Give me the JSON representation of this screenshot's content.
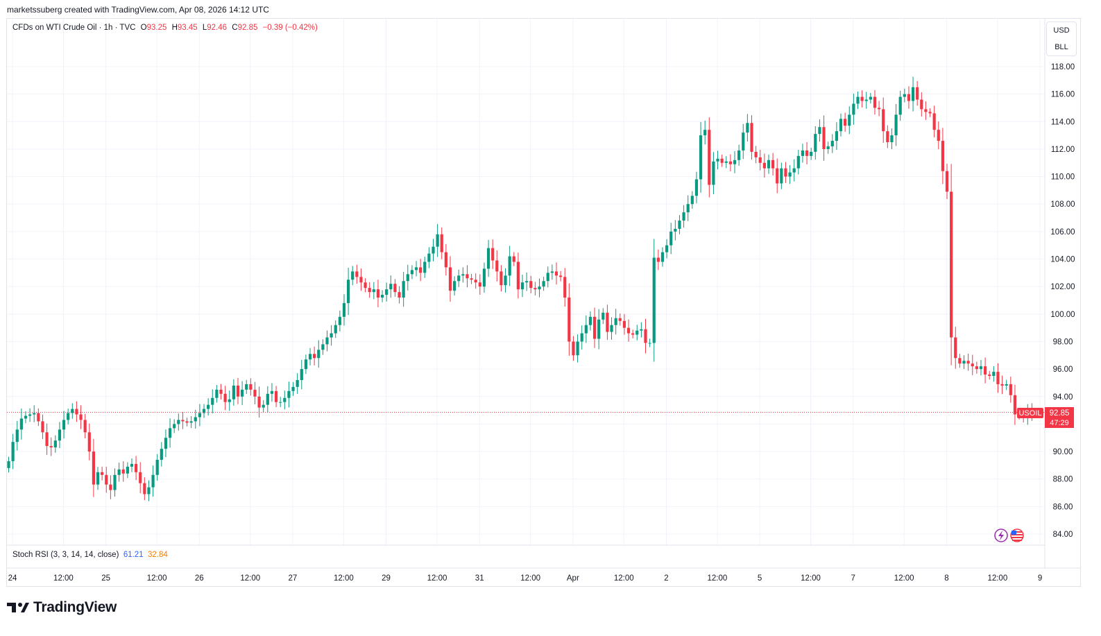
{
  "header": {
    "credit": "marketssuberg created with TradingView.com, Apr 08, 2026 14:12 UTC"
  },
  "legend": {
    "symbol": "CFDs on WTI Crude Oil · 1h · TVC",
    "o_label": "O",
    "o_value": "93.25",
    "h_label": "H",
    "h_value": "93.45",
    "l_label": "L",
    "l_value": "92.46",
    "c_label": "C",
    "c_value": "92.85",
    "change": "−0.39 (−0.42%)"
  },
  "currency": {
    "currency": "USD",
    "unit": "BLL"
  },
  "price_badge": {
    "symbol": "USOIL",
    "price": "92.85",
    "countdown": "47:29"
  },
  "indicator": {
    "name": "Stoch RSI (3, 3, 14, 14, close)",
    "k_value": "61.21",
    "d_value": "32.84"
  },
  "brand": {
    "name": "TradingView"
  },
  "colors": {
    "up": "#089981",
    "down": "#f23645",
    "grid": "#f0f3fa",
    "last_price_line": "#f23645"
  },
  "icons": [
    "lightning-icon",
    "us-flag-icon"
  ],
  "chart_data": {
    "type": "candlestick",
    "symbol": "USOIL",
    "interval": "1h",
    "ylim": [
      83.2,
      118.6
    ],
    "y_ticks": [
      "84.00",
      "86.00",
      "88.00",
      "90.00",
      "92.00",
      "94.00",
      "96.00",
      "98.00",
      "100.00",
      "102.00",
      "104.00",
      "106.00",
      "108.00",
      "110.00",
      "112.00",
      "114.00",
      "116.00",
      "118.00"
    ],
    "x_ticks": [
      {
        "label": "24",
        "bar": 0
      },
      {
        "label": "12:00",
        "bar": 12
      },
      {
        "label": "25",
        "bar": 22
      },
      {
        "label": "12:00",
        "bar": 34
      },
      {
        "label": "26",
        "bar": 44
      },
      {
        "label": "12:00",
        "bar": 56
      },
      {
        "label": "27",
        "bar": 66
      },
      {
        "label": "12:00",
        "bar": 78
      },
      {
        "label": "29",
        "bar": 88
      },
      {
        "label": "12:00",
        "bar": 100
      },
      {
        "label": "31",
        "bar": 110
      },
      {
        "label": "12:00",
        "bar": 122
      },
      {
        "label": "Apr",
        "bar": 132
      },
      {
        "label": "12:00",
        "bar": 144
      },
      {
        "label": "2",
        "bar": 154
      },
      {
        "label": "12:00",
        "bar": 166
      },
      {
        "label": "5",
        "bar": 176
      },
      {
        "label": "12:00",
        "bar": 188
      },
      {
        "label": "7",
        "bar": 198
      },
      {
        "label": "12:00",
        "bar": 210
      },
      {
        "label": "8",
        "bar": 220
      },
      {
        "label": "12:00",
        "bar": 232
      },
      {
        "label": "9",
        "bar": 242
      }
    ],
    "last_price": 92.85,
    "close_series": [
      89.3,
      90.7,
      91.6,
      92.4,
      92.6,
      92.7,
      92.8,
      92.2,
      91.4,
      90.4,
      90.3,
      90.8,
      91.6,
      92.3,
      92.8,
      93.1,
      92.7,
      92.3,
      91.4,
      90.0,
      87.6,
      88.5,
      88.3,
      87.6,
      87.2,
      88.3,
      88.7,
      88.4,
      88.9,
      89.1,
      88.5,
      87.7,
      86.9,
      87.4,
      88.3,
      89.4,
      90.2,
      91.0,
      91.7,
      92.0,
      92.3,
      92.2,
      92.1,
      92.2,
      92.5,
      92.8,
      93.1,
      93.4,
      93.9,
      94.5,
      94.2,
      93.6,
      93.8,
      94.8,
      94.0,
      94.5,
      94.9,
      94.5,
      94.0,
      93.2,
      93.4,
      94.2,
      94.4,
      93.6,
      93.6,
      93.9,
      94.4,
      94.7,
      95.2,
      96.0,
      96.7,
      97.1,
      96.8,
      97.4,
      97.8,
      98.3,
      98.6,
      99.2,
      99.8,
      100.8,
      102.5,
      103.1,
      102.7,
      102.3,
      101.9,
      101.6,
      101.8,
      101.2,
      101.4,
      101.8,
      102.2,
      101.6,
      101.2,
      102.4,
      102.9,
      103.2,
      103.4,
      103.0,
      103.8,
      104.4,
      104.9,
      105.8,
      104.5,
      103.4,
      101.7,
      102.4,
      102.8,
      102.9,
      102.6,
      102.5,
      102.3,
      102.0,
      103.3,
      104.8,
      103.9,
      103.1,
      102.1,
      102.8,
      104.2,
      103.8,
      101.8,
      102.3,
      102.4,
      101.9,
      101.8,
      102.0,
      102.4,
      103.0,
      103.1,
      102.8,
      102.7,
      101.2,
      98.0,
      97.0,
      98.0,
      98.6,
      99.2,
      99.8,
      98.2,
      99.6,
      100.1,
      98.7,
      99.2,
      99.7,
      99.5,
      99.0,
      98.6,
      98.5,
      98.8,
      98.9,
      97.9,
      97.9,
      104.1,
      103.8,
      104.5,
      105.0,
      106.0,
      106.2,
      106.8,
      107.4,
      108.0,
      108.6,
      109.8,
      113.0,
      113.4,
      109.4,
      111.1,
      111.3,
      111.0,
      111.1,
      110.9,
      111.2,
      111.9,
      113.2,
      113.9,
      111.8,
      111.4,
      111.0,
      110.6,
      111.2,
      110.6,
      109.5,
      110.6,
      110.0,
      110.3,
      110.6,
      111.5,
      111.9,
      111.5,
      111.8,
      113.1,
      113.6,
      112.0,
      112.2,
      112.6,
      113.3,
      114.2,
      113.7,
      114.5,
      115.3,
      115.8,
      115.5,
      115.6,
      115.8,
      115.0,
      114.9,
      113.3,
      112.5,
      113.0,
      114.5,
      115.8,
      116.0,
      115.5,
      116.5,
      115.6,
      114.9,
      114.7,
      114.6,
      113.4,
      112.6,
      110.4,
      108.9,
      98.3,
      96.8,
      96.4,
      96.6,
      96.4,
      96.2,
      96.0,
      96.2,
      95.6,
      95.5,
      95.8,
      94.9,
      94.8,
      94.9,
      94.1,
      92.7,
      92.6,
      92.5,
      92.9,
      92.85
    ]
  }
}
